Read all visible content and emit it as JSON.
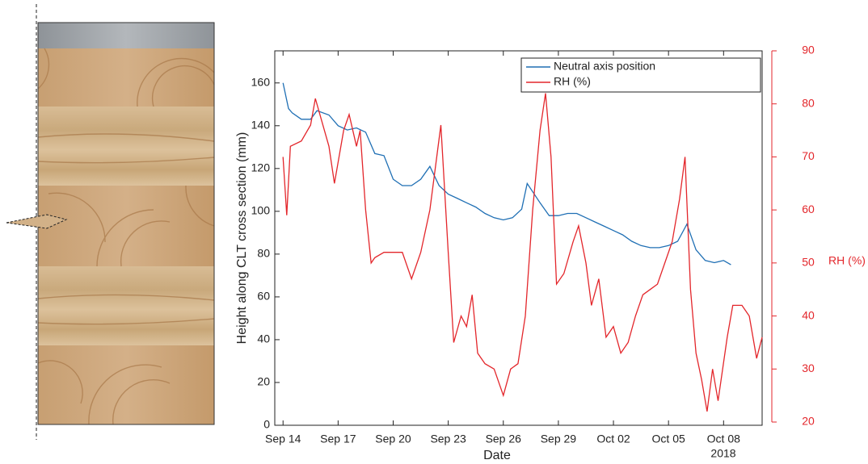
{
  "chart_data": {
    "type": "line",
    "xlabel": "Date",
    "ylabel": "Height along CLT cross section (mm)",
    "y2label": "RH (%)",
    "x_year_label": "2018",
    "xlim": [
      -0.45,
      26.1
    ],
    "xticks": [
      {
        "value": 0,
        "label": "Sep 14"
      },
      {
        "value": 3,
        "label": "Sep 17"
      },
      {
        "value": 6,
        "label": "Sep 20"
      },
      {
        "value": 9,
        "label": "Sep 23"
      },
      {
        "value": 12,
        "label": "Sep 26"
      },
      {
        "value": 15,
        "label": "Sep 29"
      },
      {
        "value": 18,
        "label": "Oct 02"
      },
      {
        "value": 21,
        "label": "Oct 05"
      },
      {
        "value": 24,
        "label": "Oct 08"
      }
    ],
    "ylim": [
      0,
      175
    ],
    "yticks": [
      0,
      20,
      40,
      60,
      80,
      100,
      120,
      140,
      160
    ],
    "y2lim": [
      20,
      90
    ],
    "y2ticks": [
      20,
      30,
      40,
      50,
      60,
      70,
      80,
      90
    ],
    "legend": "upper right",
    "series": [
      {
        "name": "Neutral axis position",
        "color": "#1f6fb4",
        "x": [
          0,
          0.3,
          0.5,
          1,
          1.5,
          1.85,
          2.5,
          3,
          3.5,
          4,
          4.5,
          5,
          5.5,
          6,
          6.5,
          7,
          7.5,
          8,
          8.5,
          9,
          9.5,
          10,
          10.5,
          11,
          11.5,
          12,
          12.5,
          13,
          13.3,
          14,
          14.5,
          15,
          15.5,
          16,
          16.5,
          17,
          17.5,
          18,
          18.5,
          19,
          19.5,
          20,
          20.5,
          21,
          21.5,
          22,
          22.5,
          23,
          23.5,
          24,
          24.4
        ],
        "values": [
          160,
          148,
          146,
          143,
          143,
          147,
          145,
          140,
          138,
          139,
          137,
          127,
          126,
          115,
          112,
          112,
          115,
          121,
          112,
          108,
          106,
          104,
          102,
          99,
          97,
          96,
          97,
          101,
          113,
          104,
          98,
          98,
          99,
          99,
          97,
          95,
          93,
          91,
          89,
          86,
          84,
          83,
          83,
          84,
          86,
          94,
          82,
          77,
          76,
          77,
          75
        ]
      },
      {
        "name": "RH (%)",
        "color": "#e3262b",
        "axis": "y2",
        "x": [
          0,
          0.2,
          0.4,
          1,
          1.5,
          1.76,
          2.5,
          2.8,
          3.3,
          3.6,
          4,
          4.2,
          4.5,
          4.8,
          5,
          5.5,
          6,
          6.5,
          7,
          7.5,
          8,
          8.6,
          9,
          9.3,
          9.7,
          10,
          10.3,
          10.6,
          11,
          11.5,
          12,
          12.4,
          12.8,
          13.2,
          13.6,
          14,
          14.3,
          14.6,
          14.9,
          15.3,
          15.8,
          16.1,
          16.5,
          16.8,
          17.2,
          17.6,
          18,
          18.4,
          18.8,
          19.2,
          19.6,
          20,
          20.4,
          20.8,
          21.2,
          21.6,
          21.9,
          22.2,
          22.5,
          22.8,
          23.1,
          23.4,
          23.7,
          24.2,
          24.5,
          25,
          25.4,
          25.8,
          26.1
        ],
        "values": [
          70,
          59,
          72,
          73,
          76,
          81,
          72,
          65,
          75,
          78,
          72,
          75,
          60,
          50,
          51,
          52,
          52,
          52,
          47,
          52,
          60,
          76,
          52,
          35,
          40,
          38,
          44,
          33,
          31,
          30,
          25,
          30,
          31,
          40,
          60,
          75,
          82,
          70,
          46,
          48,
          54,
          57,
          50,
          42,
          47,
          36,
          38,
          33,
          35,
          40,
          44,
          45,
          46,
          50,
          54,
          62,
          70,
          45,
          33,
          28,
          22,
          30,
          24,
          36,
          42,
          42,
          40,
          32,
          36
        ]
      }
    ]
  }
}
